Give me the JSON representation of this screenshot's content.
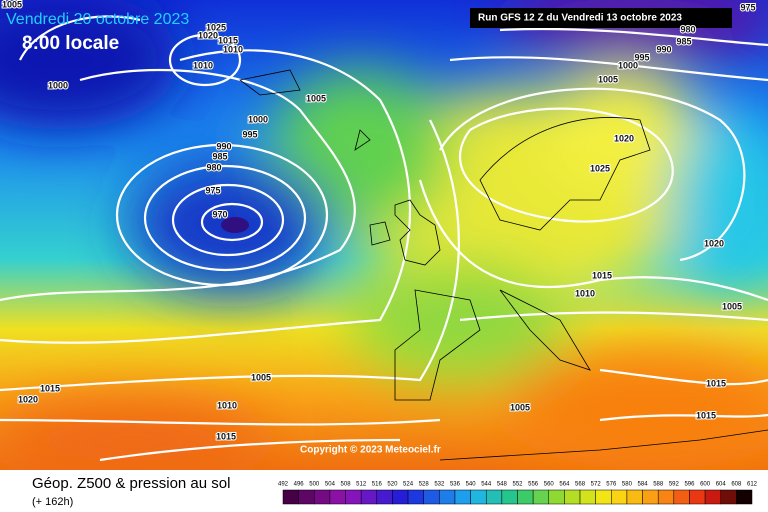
{
  "header": {
    "valid_date": "Vendredi 20 octobre 2023",
    "local_time": "8:00 locale",
    "run": "Run GFS 12 Z du Vendredi 13 octobre 2023"
  },
  "copyright": "Copyright © 2023 Meteociel.fr",
  "footer": {
    "title": "Géop. Z500 & pression au sol",
    "lead": "(+ 162h)"
  },
  "colorbar": {
    "labels": [
      492,
      496,
      500,
      504,
      508,
      512,
      516,
      520,
      524,
      528,
      532,
      536,
      540,
      544,
      548,
      552,
      556,
      560,
      564,
      568,
      572,
      576,
      580,
      584,
      588,
      592,
      596,
      600,
      604,
      608,
      612
    ]
  },
  "isobar_labels": [
    1005,
    1025,
    1020,
    1015,
    1010,
    1010,
    1000,
    1005,
    1000,
    995,
    990,
    985,
    980,
    975,
    970,
    975,
    980,
    985,
    990,
    995,
    1000,
    1005,
    1020,
    1025,
    1020,
    1015,
    1010,
    1005,
    1005,
    1015,
    1020,
    1010,
    1005,
    1015,
    1015,
    1015
  ]
}
